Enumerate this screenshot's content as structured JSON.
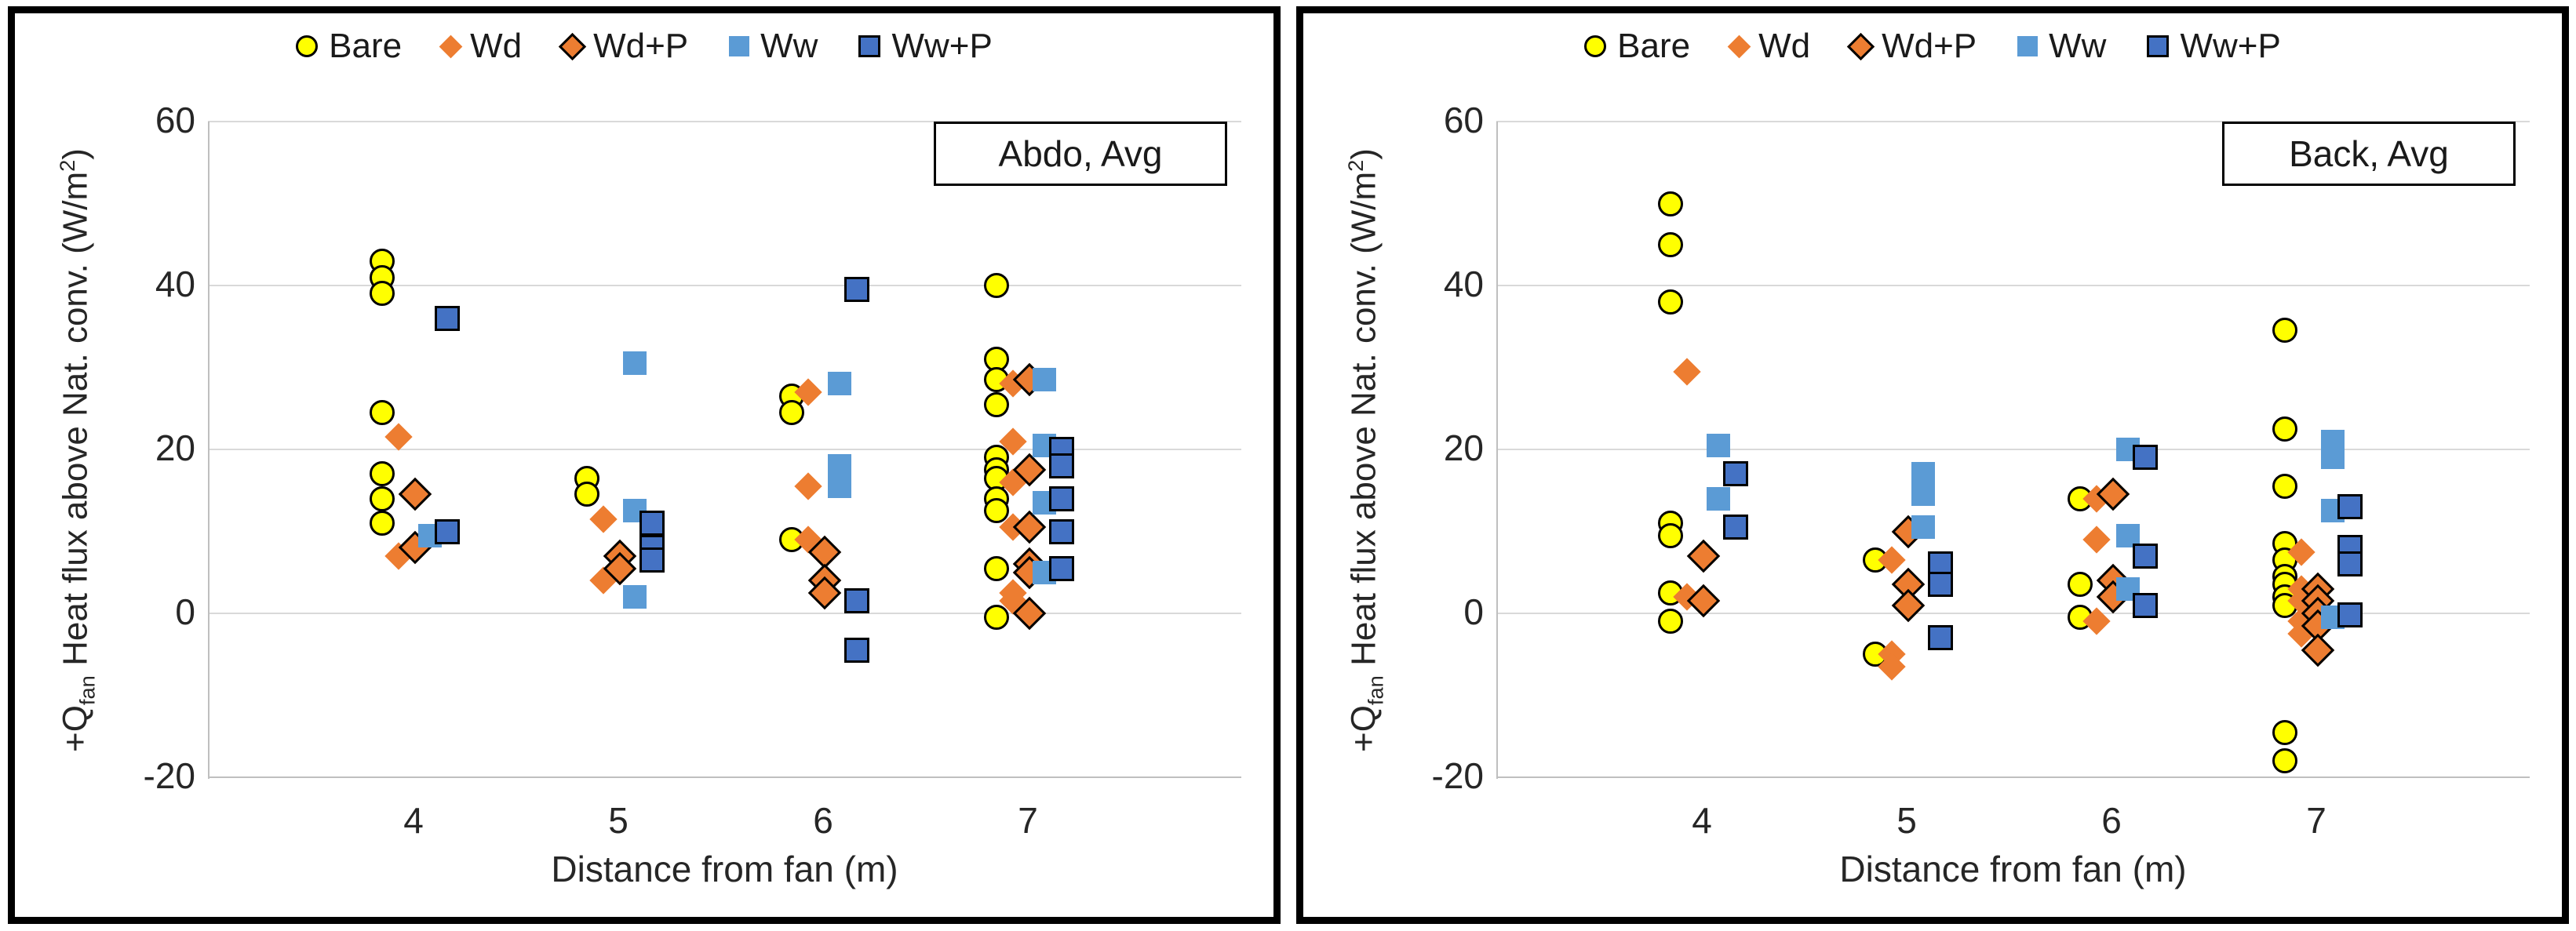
{
  "colors": {
    "bare_fill": "#ffff00",
    "wd_fill": "#ed7d31",
    "ww_fill": "#5b9bd5",
    "wwp_fill": "#4472c4",
    "marker_outline": "#000000",
    "gridline": "#d9d9d9",
    "axis_line": "#bfbfbf",
    "panel_border": "#000000"
  },
  "legend": {
    "items": [
      "Bare",
      "Wd",
      "Wd+P",
      "Ww",
      "Ww+P"
    ]
  },
  "axis": {
    "x_label": "Distance from fan (m)",
    "x_ticks": [
      4,
      5,
      6,
      7
    ],
    "y_ticks": [
      60,
      40,
      20,
      0,
      -20
    ],
    "ylim": [
      -20,
      60
    ],
    "y_label_parts": {
      "prefix": "+Q",
      "sub": "fan",
      "mid": " Heat flux above Nat. conv. (W/m",
      "sup": "2",
      "suffix": ")"
    }
  },
  "chart_data": [
    {
      "type": "scatter",
      "title": "Abdo, Avg",
      "xlabel": "Distance from fan (m)",
      "ylabel": "+Qfan Heat flux above Nat. conv. (W/m2)",
      "categories": [
        4,
        5,
        6,
        7
      ],
      "ylim": [
        -20,
        60
      ],
      "grid": true,
      "legend_position": "top",
      "series": [
        {
          "name": "Bare",
          "marker": "circle-yellow",
          "points": [
            [
              4,
              43
            ],
            [
              4,
              41
            ],
            [
              4,
              39
            ],
            [
              4,
              24.5
            ],
            [
              4,
              17
            ],
            [
              4,
              14
            ],
            [
              4,
              11
            ],
            [
              5,
              16.5
            ],
            [
              5,
              14.5
            ],
            [
              6,
              26.5
            ],
            [
              6,
              24.5
            ],
            [
              6,
              9
            ],
            [
              7,
              40
            ],
            [
              7,
              31
            ],
            [
              7,
              28.5
            ],
            [
              7,
              25.5
            ],
            [
              7,
              19
            ],
            [
              7,
              17.5
            ],
            [
              7,
              16.5
            ],
            [
              7,
              14
            ],
            [
              7,
              12.5
            ],
            [
              7,
              5.5
            ],
            [
              7,
              -0.5
            ]
          ]
        },
        {
          "name": "Wd",
          "marker": "diamond-orange",
          "points": [
            [
              4,
              21.5
            ],
            [
              4,
              7
            ],
            [
              5,
              11.5
            ],
            [
              5,
              4
            ],
            [
              6,
              27
            ],
            [
              6,
              15.5
            ],
            [
              6,
              9
            ],
            [
              7,
              28
            ],
            [
              7,
              21
            ],
            [
              7,
              16
            ],
            [
              7,
              10.5
            ],
            [
              7,
              2.5
            ],
            [
              7,
              1.5
            ]
          ]
        },
        {
          "name": "Wd+P",
          "marker": "diamond-orange-outline",
          "points": [
            [
              4,
              14.5
            ],
            [
              4,
              8
            ],
            [
              5,
              7
            ],
            [
              5,
              5.5
            ],
            [
              6,
              7.5
            ],
            [
              6,
              4
            ],
            [
              6,
              2.5
            ],
            [
              7,
              28.5
            ],
            [
              7,
              17.5
            ],
            [
              7,
              10.5
            ],
            [
              7,
              6
            ],
            [
              7,
              5
            ],
            [
              7,
              0
            ]
          ]
        },
        {
          "name": "Ww",
          "marker": "square-lightblue",
          "points": [
            [
              4,
              9.5
            ],
            [
              5,
              30.5
            ],
            [
              5,
              12.5
            ],
            [
              5,
              2
            ],
            [
              6,
              28
            ],
            [
              6,
              18
            ],
            [
              6,
              15.5
            ],
            [
              7,
              28.5
            ],
            [
              7,
              20.5
            ],
            [
              7,
              13.5
            ],
            [
              7,
              5
            ]
          ]
        },
        {
          "name": "Ww+P",
          "marker": "square-blue-outline",
          "points": [
            [
              4,
              36
            ],
            [
              4,
              10
            ],
            [
              5,
              11
            ],
            [
              5,
              8
            ],
            [
              5,
              6.5
            ],
            [
              6,
              39.5
            ],
            [
              6,
              1.5
            ],
            [
              6,
              -4.5
            ],
            [
              7,
              20
            ],
            [
              7,
              18
            ],
            [
              7,
              14
            ],
            [
              7,
              10
            ],
            [
              7,
              5.5
            ]
          ]
        }
      ]
    },
    {
      "type": "scatter",
      "title": "Back, Avg",
      "xlabel": "Distance from fan (m)",
      "ylabel": "+Qfan Heat flux above Nat. conv. (W/m2)",
      "categories": [
        4,
        5,
        6,
        7
      ],
      "ylim": [
        -20,
        60
      ],
      "grid": true,
      "legend_position": "top",
      "series": [
        {
          "name": "Bare",
          "marker": "circle-yellow",
          "points": [
            [
              4,
              50
            ],
            [
              4,
              45
            ],
            [
              4,
              38
            ],
            [
              4,
              11
            ],
            [
              4,
              9.5
            ],
            [
              4,
              2.5
            ],
            [
              4,
              -1
            ],
            [
              5,
              6.5
            ],
            [
              5,
              -5
            ],
            [
              6,
              14
            ],
            [
              6,
              3.5
            ],
            [
              6,
              -0.5
            ],
            [
              7,
              34.5
            ],
            [
              7,
              22.5
            ],
            [
              7,
              15.5
            ],
            [
              7,
              8.5
            ],
            [
              7,
              6.5
            ],
            [
              7,
              4.5
            ],
            [
              7,
              3.5
            ],
            [
              7,
              2
            ],
            [
              7,
              1
            ],
            [
              7,
              -14.5
            ],
            [
              7,
              -18
            ]
          ]
        },
        {
          "name": "Wd",
          "marker": "diamond-orange",
          "points": [
            [
              4,
              29.5
            ],
            [
              4,
              2
            ],
            [
              5,
              6.5
            ],
            [
              5,
              -5
            ],
            [
              5,
              -6.5
            ],
            [
              6,
              14
            ],
            [
              6,
              9
            ],
            [
              6,
              -1
            ],
            [
              7,
              7.5
            ],
            [
              7,
              3
            ],
            [
              7,
              1.5
            ],
            [
              7,
              -1
            ],
            [
              7,
              -2.5
            ]
          ]
        },
        {
          "name": "Wd+P",
          "marker": "diamond-orange-outline",
          "points": [
            [
              4,
              7
            ],
            [
              4,
              1.5
            ],
            [
              5,
              10
            ],
            [
              5,
              3.5
            ],
            [
              5,
              1
            ],
            [
              6,
              14.5
            ],
            [
              6,
              4
            ],
            [
              6,
              2
            ],
            [
              7,
              3
            ],
            [
              7,
              1.5
            ],
            [
              7,
              0
            ],
            [
              7,
              -1.5
            ],
            [
              7,
              -4.5
            ]
          ]
        },
        {
          "name": "Ww",
          "marker": "square-lightblue",
          "points": [
            [
              4,
              20.5
            ],
            [
              4,
              14
            ],
            [
              5,
              17
            ],
            [
              5,
              14.5
            ],
            [
              5,
              10.5
            ],
            [
              6,
              20
            ],
            [
              6,
              9.5
            ],
            [
              6,
              3
            ],
            [
              7,
              21
            ],
            [
              7,
              19
            ],
            [
              7,
              12.5
            ],
            [
              7,
              -0.5
            ]
          ]
        },
        {
          "name": "Ww+P",
          "marker": "square-blue-outline",
          "points": [
            [
              4,
              17
            ],
            [
              4,
              10.5
            ],
            [
              5,
              6
            ],
            [
              5,
              3.5
            ],
            [
              5,
              -3
            ],
            [
              6,
              19
            ],
            [
              6,
              7
            ],
            [
              6,
              1
            ],
            [
              7,
              13
            ],
            [
              7,
              8
            ],
            [
              7,
              6
            ],
            [
              7,
              -0.2
            ]
          ]
        }
      ]
    }
  ]
}
